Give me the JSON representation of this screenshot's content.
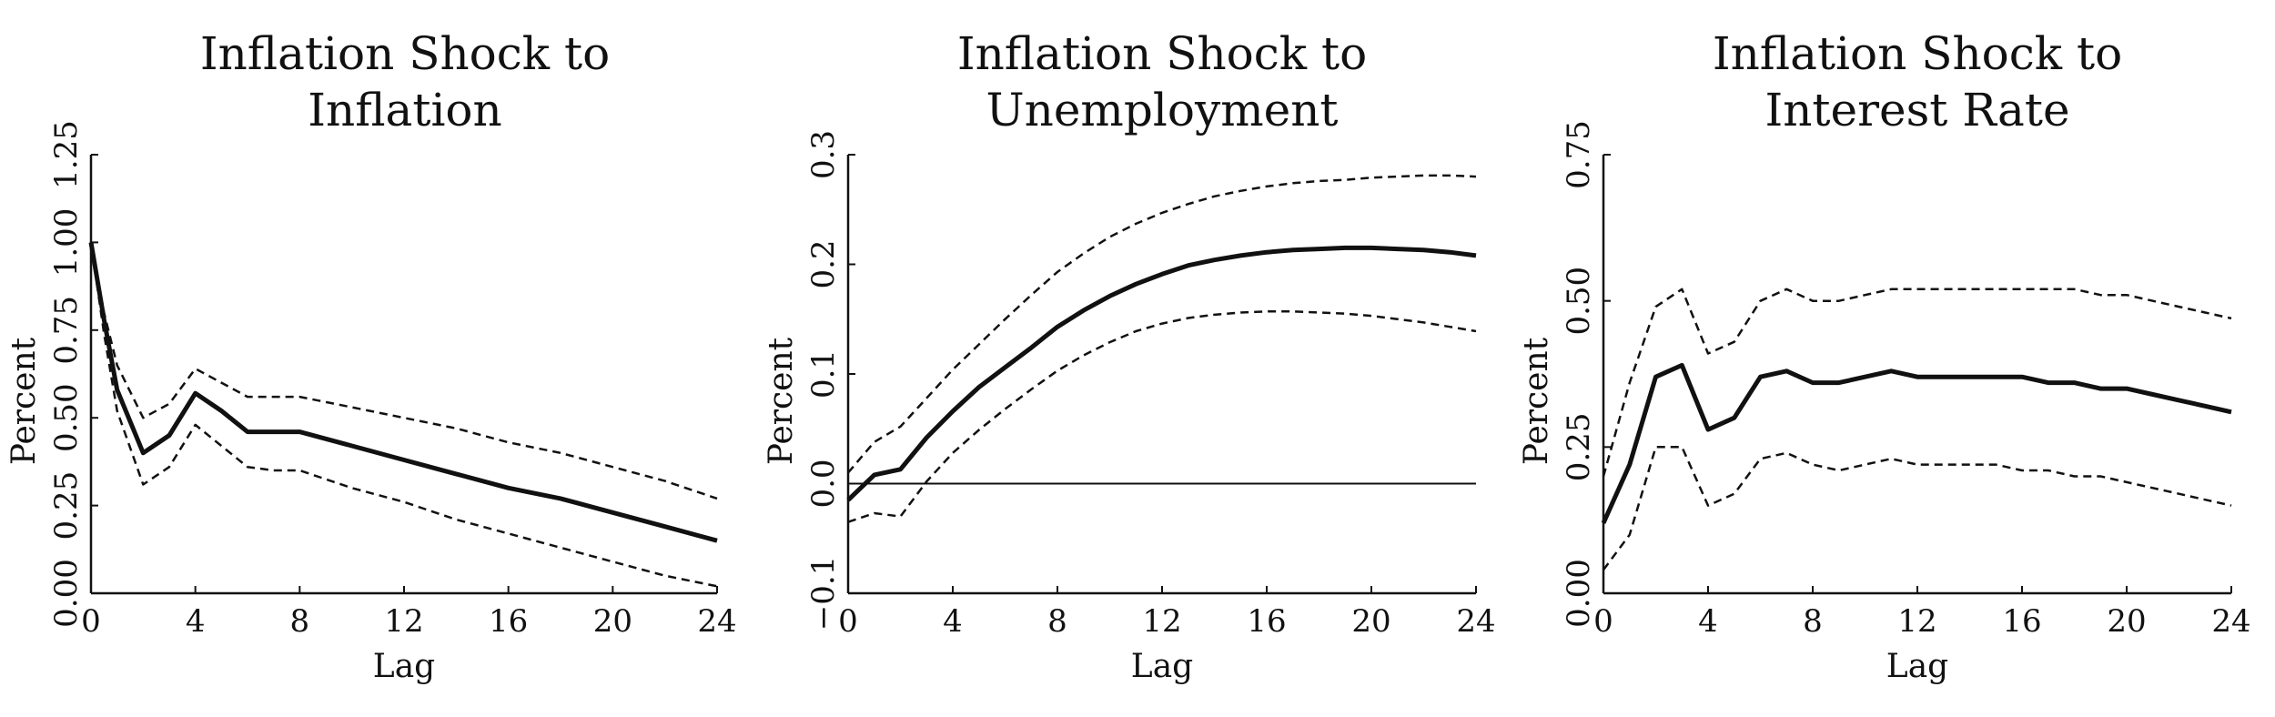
{
  "chart_data": [
    {
      "type": "line",
      "title_lines": [
        "Inflation Shock to",
        "Inflation"
      ],
      "xlabel": "Lag",
      "ylabel": "Percent",
      "xlim": [
        0,
        24
      ],
      "ylim": [
        0,
        1.25
      ],
      "xticks": [
        "0",
        "4",
        "8",
        "12",
        "16",
        "20",
        "24"
      ],
      "yticks": [
        "0.00",
        "0.25",
        "0.50",
        "0.75",
        "1.00",
        "1.25"
      ],
      "zero_line": false,
      "x": [
        0,
        0.5,
        1,
        2,
        3,
        4,
        5,
        6,
        7,
        8,
        10,
        12,
        14,
        16,
        18,
        20,
        22,
        24
      ],
      "series": [
        {
          "role": "estimate",
          "values": [
            1.0,
            0.78,
            0.58,
            0.4,
            0.45,
            0.57,
            0.52,
            0.46,
            0.46,
            0.46,
            0.42,
            0.38,
            0.34,
            0.3,
            0.27,
            0.23,
            0.19,
            0.15
          ]
        },
        {
          "role": "upper",
          "values": [
            1.0,
            0.8,
            0.65,
            0.5,
            0.54,
            0.64,
            0.6,
            0.56,
            0.56,
            0.56,
            0.53,
            0.5,
            0.47,
            0.43,
            0.4,
            0.36,
            0.32,
            0.27
          ]
        },
        {
          "role": "lower",
          "values": [
            1.0,
            0.74,
            0.52,
            0.31,
            0.36,
            0.48,
            0.42,
            0.36,
            0.35,
            0.35,
            0.3,
            0.26,
            0.21,
            0.17,
            0.13,
            0.09,
            0.05,
            0.02
          ]
        }
      ]
    },
    {
      "type": "line",
      "title_lines": [
        "Inflation Shock to",
        "Unemployment"
      ],
      "xlabel": "Lag",
      "ylabel": "Percent",
      "xlim": [
        0,
        24
      ],
      "ylim": [
        -0.1,
        0.3
      ],
      "xticks": [
        "0",
        "4",
        "8",
        "12",
        "16",
        "20",
        "24"
      ],
      "yticks": [
        "−0.1",
        "0.0",
        "0.1",
        "0.2",
        "0.3"
      ],
      "zero_line": true,
      "x": [
        0,
        1,
        2,
        3,
        4,
        5,
        6,
        7,
        8,
        9,
        10,
        11,
        12,
        13,
        14,
        15,
        16,
        17,
        18,
        19,
        20,
        21,
        22,
        23,
        24
      ],
      "series": [
        {
          "role": "estimate",
          "values": [
            -0.015,
            0.008,
            0.013,
            0.042,
            0.066,
            0.088,
            0.106,
            0.124,
            0.143,
            0.158,
            0.171,
            0.182,
            0.191,
            0.199,
            0.204,
            0.208,
            0.211,
            0.213,
            0.214,
            0.215,
            0.215,
            0.214,
            0.213,
            0.211,
            0.208
          ]
        },
        {
          "role": "upper",
          "values": [
            0.01,
            0.038,
            0.052,
            0.078,
            0.104,
            0.127,
            0.15,
            0.172,
            0.193,
            0.21,
            0.225,
            0.237,
            0.247,
            0.255,
            0.262,
            0.267,
            0.271,
            0.274,
            0.276,
            0.277,
            0.279,
            0.28,
            0.281,
            0.281,
            0.28
          ]
        },
        {
          "role": "lower",
          "values": [
            -0.035,
            -0.027,
            -0.03,
            0.002,
            0.028,
            0.049,
            0.068,
            0.086,
            0.103,
            0.117,
            0.129,
            0.139,
            0.146,
            0.151,
            0.154,
            0.156,
            0.157,
            0.157,
            0.156,
            0.155,
            0.153,
            0.15,
            0.147,
            0.143,
            0.139
          ]
        }
      ]
    },
    {
      "type": "line",
      "title_lines": [
        "Inflation Shock to",
        "Interest Rate"
      ],
      "xlabel": "Lag",
      "ylabel": "Percent",
      "xlim": [
        0,
        24
      ],
      "ylim": [
        0,
        0.75
      ],
      "xticks": [
        "0",
        "4",
        "8",
        "12",
        "16",
        "20",
        "24"
      ],
      "yticks": [
        "0.00",
        "0.25",
        "0.50",
        "0.75"
      ],
      "zero_line": false,
      "x": [
        0,
        1,
        2,
        3,
        4,
        5,
        6,
        7,
        8,
        9,
        10,
        11,
        12,
        13,
        14,
        15,
        16,
        17,
        18,
        19,
        20,
        21,
        22,
        23,
        24
      ],
      "series": [
        {
          "role": "estimate",
          "values": [
            0.12,
            0.22,
            0.37,
            0.39,
            0.28,
            0.3,
            0.37,
            0.38,
            0.36,
            0.36,
            0.37,
            0.38,
            0.37,
            0.37,
            0.37,
            0.37,
            0.37,
            0.36,
            0.36,
            0.35,
            0.35,
            0.34,
            0.33,
            0.32,
            0.31
          ]
        },
        {
          "role": "upper",
          "values": [
            0.2,
            0.36,
            0.49,
            0.52,
            0.41,
            0.43,
            0.5,
            0.52,
            0.5,
            0.5,
            0.51,
            0.52,
            0.52,
            0.52,
            0.52,
            0.52,
            0.52,
            0.52,
            0.52,
            0.51,
            0.51,
            0.5,
            0.49,
            0.48,
            0.47
          ]
        },
        {
          "role": "lower",
          "values": [
            0.04,
            0.1,
            0.25,
            0.25,
            0.15,
            0.17,
            0.23,
            0.24,
            0.22,
            0.21,
            0.22,
            0.23,
            0.22,
            0.22,
            0.22,
            0.22,
            0.21,
            0.21,
            0.2,
            0.2,
            0.19,
            0.18,
            0.17,
            0.16,
            0.15
          ]
        }
      ]
    }
  ]
}
